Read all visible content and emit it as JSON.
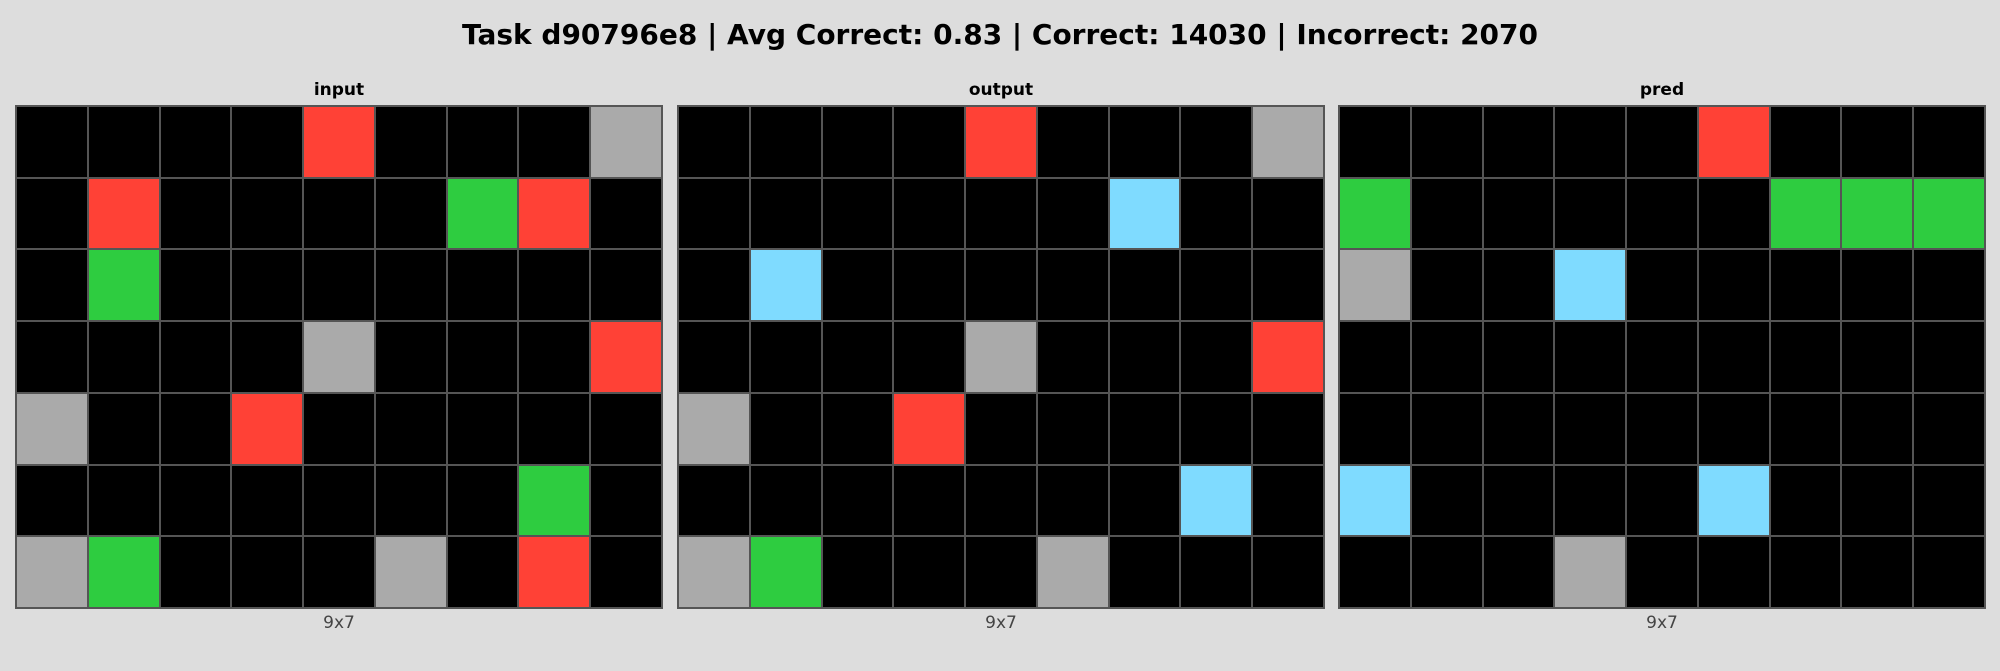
{
  "title": "Task d90796e8 | Avg Correct: 0.83 | Correct: 14030 | Incorrect: 2070",
  "palette": {
    "0": "#000000",
    "2": "#ff4136",
    "3": "#2ecc40",
    "5": "#aaaaaa",
    "8": "#7fdbff"
  },
  "panels": [
    {
      "label": "input",
      "dims": "9x7",
      "grid": [
        [
          0,
          0,
          0,
          0,
          2,
          0,
          0,
          0,
          5
        ],
        [
          0,
          2,
          0,
          0,
          0,
          0,
          3,
          2,
          0
        ],
        [
          0,
          3,
          0,
          0,
          0,
          0,
          0,
          0,
          0
        ],
        [
          0,
          0,
          0,
          0,
          5,
          0,
          0,
          0,
          2
        ],
        [
          5,
          0,
          0,
          2,
          0,
          0,
          0,
          0,
          0
        ],
        [
          0,
          0,
          0,
          0,
          0,
          0,
          0,
          3,
          0
        ],
        [
          5,
          3,
          0,
          0,
          0,
          5,
          0,
          2,
          0
        ]
      ]
    },
    {
      "label": "output",
      "dims": "9x7",
      "grid": [
        [
          0,
          0,
          0,
          0,
          2,
          0,
          0,
          0,
          5
        ],
        [
          0,
          0,
          0,
          0,
          0,
          0,
          8,
          0,
          0
        ],
        [
          0,
          8,
          0,
          0,
          0,
          0,
          0,
          0,
          0
        ],
        [
          0,
          0,
          0,
          0,
          5,
          0,
          0,
          0,
          2
        ],
        [
          5,
          0,
          0,
          2,
          0,
          0,
          0,
          0,
          0
        ],
        [
          0,
          0,
          0,
          0,
          0,
          0,
          0,
          8,
          0
        ],
        [
          5,
          3,
          0,
          0,
          0,
          5,
          0,
          0,
          0
        ]
      ]
    },
    {
      "label": "pred",
      "dims": "9x7",
      "grid": [
        [
          0,
          0,
          0,
          0,
          0,
          2,
          0,
          0,
          0
        ],
        [
          3,
          0,
          0,
          0,
          0,
          0,
          3,
          3,
          3
        ],
        [
          5,
          0,
          0,
          8,
          0,
          0,
          0,
          0,
          0
        ],
        [
          0,
          0,
          0,
          0,
          0,
          0,
          0,
          0,
          0
        ],
        [
          0,
          0,
          0,
          0,
          0,
          0,
          0,
          0,
          0
        ],
        [
          8,
          0,
          0,
          0,
          0,
          8,
          0,
          0,
          0
        ],
        [
          0,
          0,
          0,
          5,
          0,
          0,
          0,
          0,
          0
        ]
      ]
    }
  ]
}
